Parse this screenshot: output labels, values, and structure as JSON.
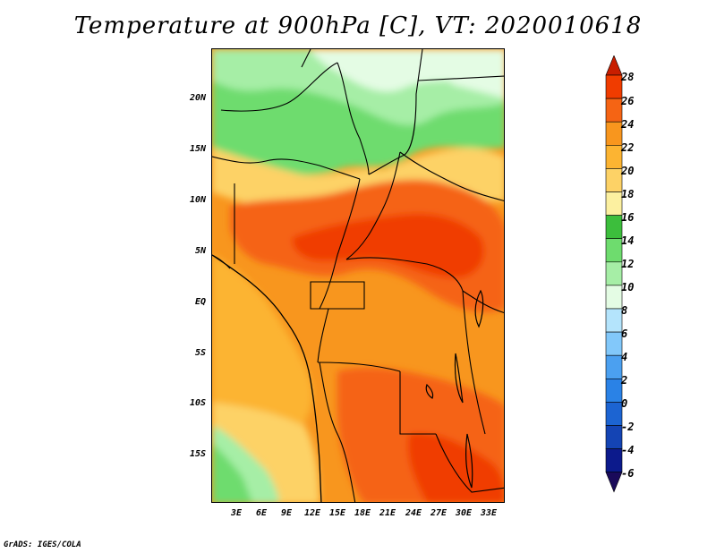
{
  "title": "Temperature at 900hPa [C], VT: 2020010618",
  "credit": "GrADS: IGES/COLA",
  "lat_labels": [
    "20N",
    "15N",
    "10N",
    "5N",
    "EQ",
    "5S",
    "10S",
    "15S"
  ],
  "lon_labels": [
    "3E",
    "6E",
    "9E",
    "12E",
    "15E",
    "18E",
    "21E",
    "24E",
    "27E",
    "30E",
    "33E"
  ],
  "colorbar": {
    "values": [
      "28",
      "26",
      "24",
      "22",
      "20",
      "18",
      "16",
      "14",
      "12",
      "10",
      "8",
      "6",
      "4",
      "2",
      "0",
      "-2",
      "-4",
      "-6"
    ],
    "colors": [
      "#c81e00",
      "#f03c00",
      "#f56414",
      "#f8961e",
      "#fcb432",
      "#fdd266",
      "#fcf0a0",
      "#3cbe3c",
      "#6edc6e",
      "#a6eea6",
      "#e4fce4",
      "#b4e4fc",
      "#82c8fa",
      "#4ba0f0",
      "#2a82e6",
      "#1c64d2",
      "#1444b4",
      "#0c1a8c",
      "#1a0a5a"
    ]
  },
  "regions": {
    "sahara_label": "",
    "map_alt": "Temperature map of Central Africa"
  }
}
